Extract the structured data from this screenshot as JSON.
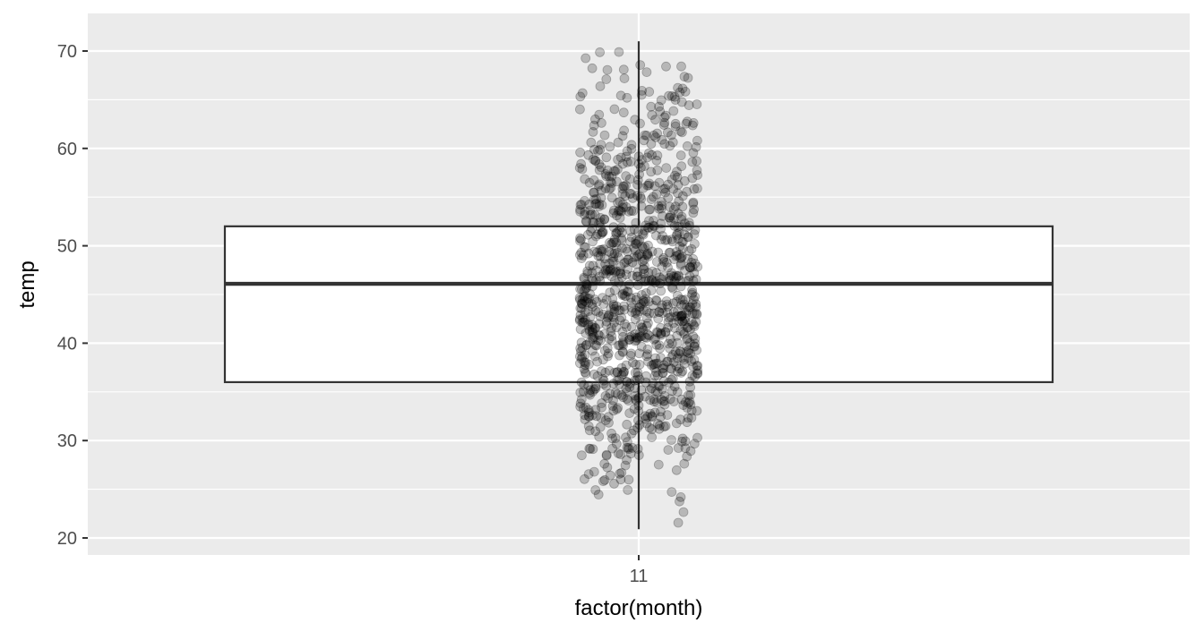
{
  "chart_data": {
    "type": "boxplot",
    "title": "",
    "xlabel": "factor(month)",
    "ylabel": "temp",
    "categories": [
      "11"
    ],
    "ylim": [
      19,
      74
    ],
    "yticks": [
      20,
      30,
      40,
      50,
      60,
      70
    ],
    "y_minor_ticks": [
      25,
      35,
      45,
      55,
      65
    ],
    "grid": true,
    "background": "#ebebeb",
    "grid_color": "#ffffff",
    "box": {
      "category": "11",
      "whisker_low": 20.9,
      "q1": 36,
      "median": 46.1,
      "q3": 52,
      "whisker_high": 71,
      "fill": "#ffffff",
      "line_color": "#333333"
    },
    "points": {
      "description_count": 1100,
      "x_jitter": 0.4,
      "color": "#000000",
      "alpha": 0.22,
      "y_min": 20.9,
      "y_max": 71.4
    }
  }
}
